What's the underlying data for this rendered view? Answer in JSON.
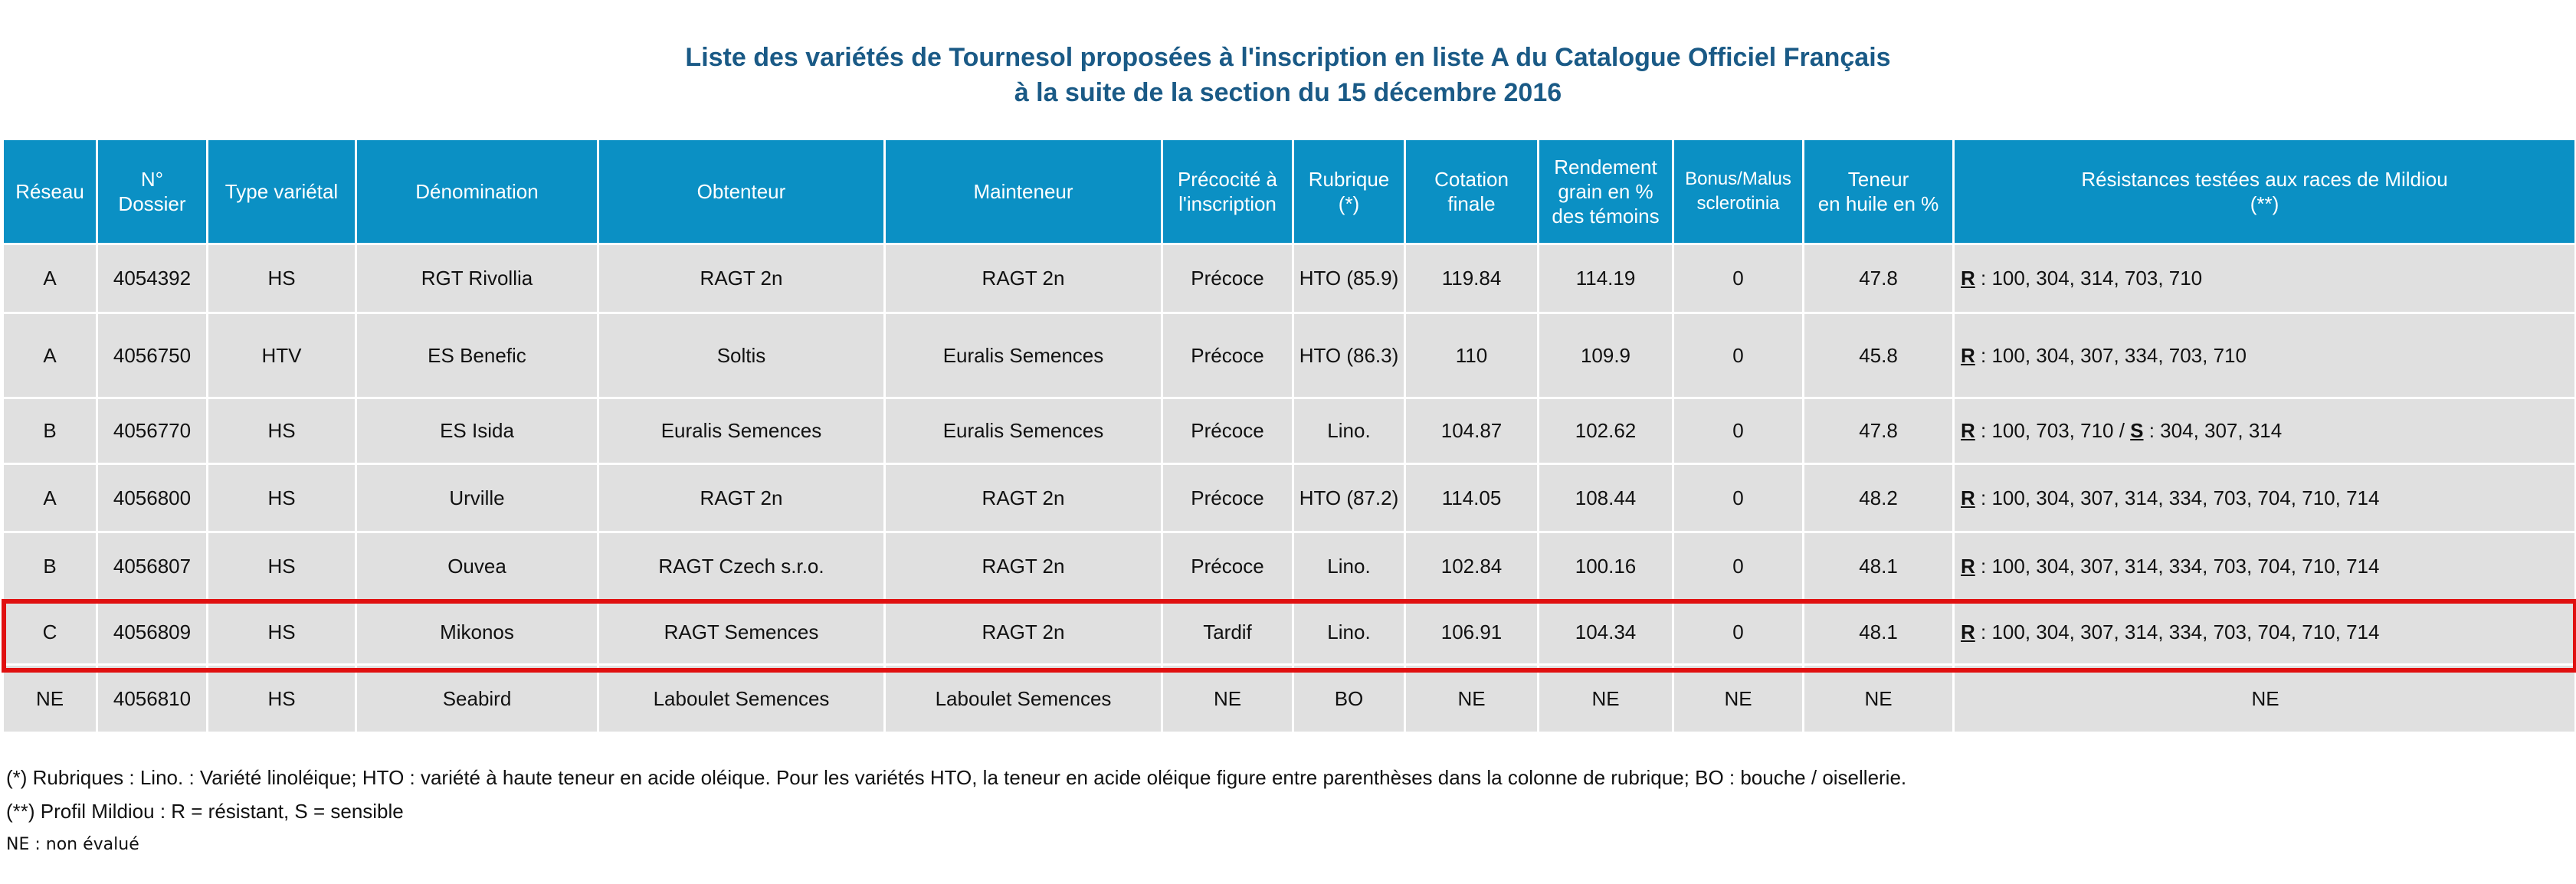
{
  "title": {
    "line1": "Liste des variétés de Tournesol proposées à l'inscription en liste A du Catalogue Officiel Français",
    "line2": "à la suite de la section du 15 décembre 2016"
  },
  "headers": {
    "reseau": "Réseau",
    "dossier": "N°\nDossier",
    "type": "Type variétal",
    "denomination": "Dénomination",
    "obtenteur": "Obtenteur",
    "mainteneur": "Mainteneur",
    "precocite": "Précocité à\nl'inscription",
    "rubrique": "Rubrique\n(*)",
    "cotation": "Cotation\nfinale",
    "rendement": "Rendement\ngrain en %\ndes témoins",
    "bonus": "Bonus/Malus\nsclerotinia",
    "teneur": "Teneur\nen huile en %",
    "resistances": "Résistances testées aux races de Mildiou\n(**)"
  },
  "rows": [
    {
      "reseau": "A",
      "dossier": "4054392",
      "type": "HS",
      "denomination": "RGT Rivollia",
      "obtenteur": "RAGT 2n",
      "mainteneur": "RAGT 2n",
      "precocite": "Précoce",
      "rubrique": "HTO (85.9)",
      "cotation": "119.84",
      "rendement": "114.19",
      "bonus": "0",
      "teneur": "47.8",
      "res_r_label": "R",
      "res_r": " : 100, 304, 314, 703, 710",
      "res_sep": "",
      "res_s_label": "",
      "res_s": ""
    },
    {
      "reseau": "A",
      "dossier": "4056750",
      "type": "HTV",
      "denomination": "ES Benefic",
      "obtenteur": "Soltis",
      "mainteneur": "Euralis Semences",
      "precocite": "Précoce",
      "rubrique": "HTO (86.3)",
      "cotation": "110",
      "rendement": "109.9",
      "bonus": "0",
      "teneur": "45.8",
      "res_r_label": "R",
      "res_r": " : 100, 304, 307, 334, 703, 710",
      "res_sep": "",
      "res_s_label": "",
      "res_s": ""
    },
    {
      "reseau": "B",
      "dossier": "4056770",
      "type": "HS",
      "denomination": "ES Isida",
      "obtenteur": "Euralis Semences",
      "mainteneur": "Euralis Semences",
      "precocite": "Précoce",
      "rubrique": "Lino.",
      "cotation": "104.87",
      "rendement": "102.62",
      "bonus": "0",
      "teneur": "47.8",
      "res_r_label": "R",
      "res_r": " : 100, 703, 710",
      "res_sep": " / ",
      "res_s_label": "S",
      "res_s": " : 304, 307, 314"
    },
    {
      "reseau": "A",
      "dossier": "4056800",
      "type": "HS",
      "denomination": "Urville",
      "obtenteur": "RAGT 2n",
      "mainteneur": "RAGT 2n",
      "precocite": "Précoce",
      "rubrique": "HTO (87.2)",
      "cotation": "114.05",
      "rendement": "108.44",
      "bonus": "0",
      "teneur": "48.2",
      "res_r_label": "R",
      "res_r": " : 100, 304, 307, 314, 334, 703, 704, 710, 714",
      "res_sep": "",
      "res_s_label": "",
      "res_s": ""
    },
    {
      "reseau": "B",
      "dossier": "4056807",
      "type": "HS",
      "denomination": "Ouvea",
      "obtenteur": "RAGT Czech s.r.o.",
      "mainteneur": "RAGT 2n",
      "precocite": "Précoce",
      "rubrique": "Lino.",
      "cotation": "102.84",
      "rendement": "100.16",
      "bonus": "0",
      "teneur": "48.1",
      "res_r_label": "R",
      "res_r": " : 100, 304, 307, 314, 334, 703, 704, 710, 714",
      "res_sep": "",
      "res_s_label": "",
      "res_s": ""
    },
    {
      "reseau": "C",
      "dossier": "4056809",
      "type": "HS",
      "denomination": "Mikonos",
      "obtenteur": "RAGT Semences",
      "mainteneur": "RAGT 2n",
      "precocite": "Tardif",
      "rubrique": "Lino.",
      "cotation": "106.91",
      "rendement": "104.34",
      "bonus": "0",
      "teneur": "48.1",
      "res_r_label": "R",
      "res_r": " : 100, 304, 307, 314, 334, 703, 704, 710, 714",
      "res_sep": "",
      "res_s_label": "",
      "res_s": ""
    },
    {
      "reseau": "NE",
      "dossier": "4056810",
      "type": "HS",
      "denomination": "Seabird",
      "obtenteur": "Laboulet Semences",
      "mainteneur": "Laboulet Semences",
      "precocite": "NE",
      "rubrique": "BO",
      "cotation": "NE",
      "rendement": "NE",
      "bonus": "NE",
      "teneur": "NE",
      "res_plain": "NE"
    }
  ],
  "notes": {
    "rubriques": "(*) Rubriques : Lino. : Variété linoléique; HTO : variété à haute teneur en acide oléique. Pour les variétés HTO, la teneur en acide oléique figure entre parenthèses dans la colonne de rubrique; BO : bouche / oisellerie.",
    "mildiou": "(**) Profil Mildiou : R = résistant, S = sensible",
    "ne": "NE : non évalué"
  },
  "colors": {
    "header_bg": "#0b90c4",
    "row_bg": "#e0e0e0",
    "title": "#1a5a86",
    "highlight": "#e01010"
  }
}
